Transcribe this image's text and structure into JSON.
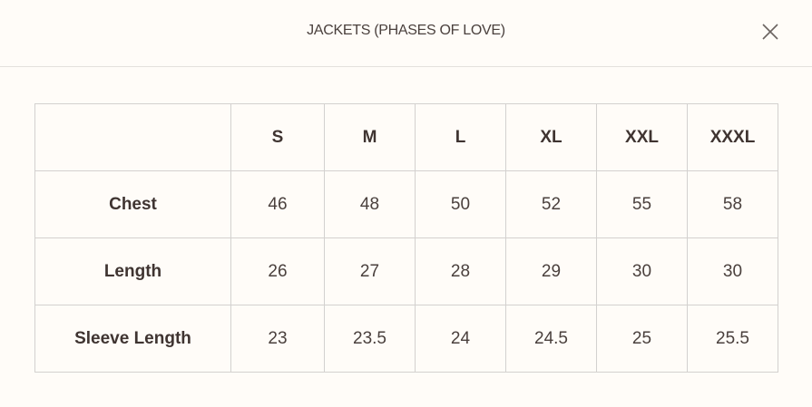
{
  "header": {
    "title": "JACKETS (PHASES OF LOVE)",
    "close_icon": "close-icon"
  },
  "table": {
    "columns": [
      "",
      "S",
      "M",
      "L",
      "XL",
      "XXL",
      "XXXL"
    ],
    "rows": [
      {
        "label": "Chest",
        "values": [
          "46",
          "48",
          "50",
          "52",
          "55",
          "58"
        ]
      },
      {
        "label": "Length",
        "values": [
          "26",
          "27",
          "28",
          "29",
          "30",
          "30"
        ]
      },
      {
        "label": "Sleeve Length",
        "values": [
          "23",
          "23.5",
          "24",
          "24.5",
          "25",
          "25.5"
        ]
      }
    ]
  }
}
